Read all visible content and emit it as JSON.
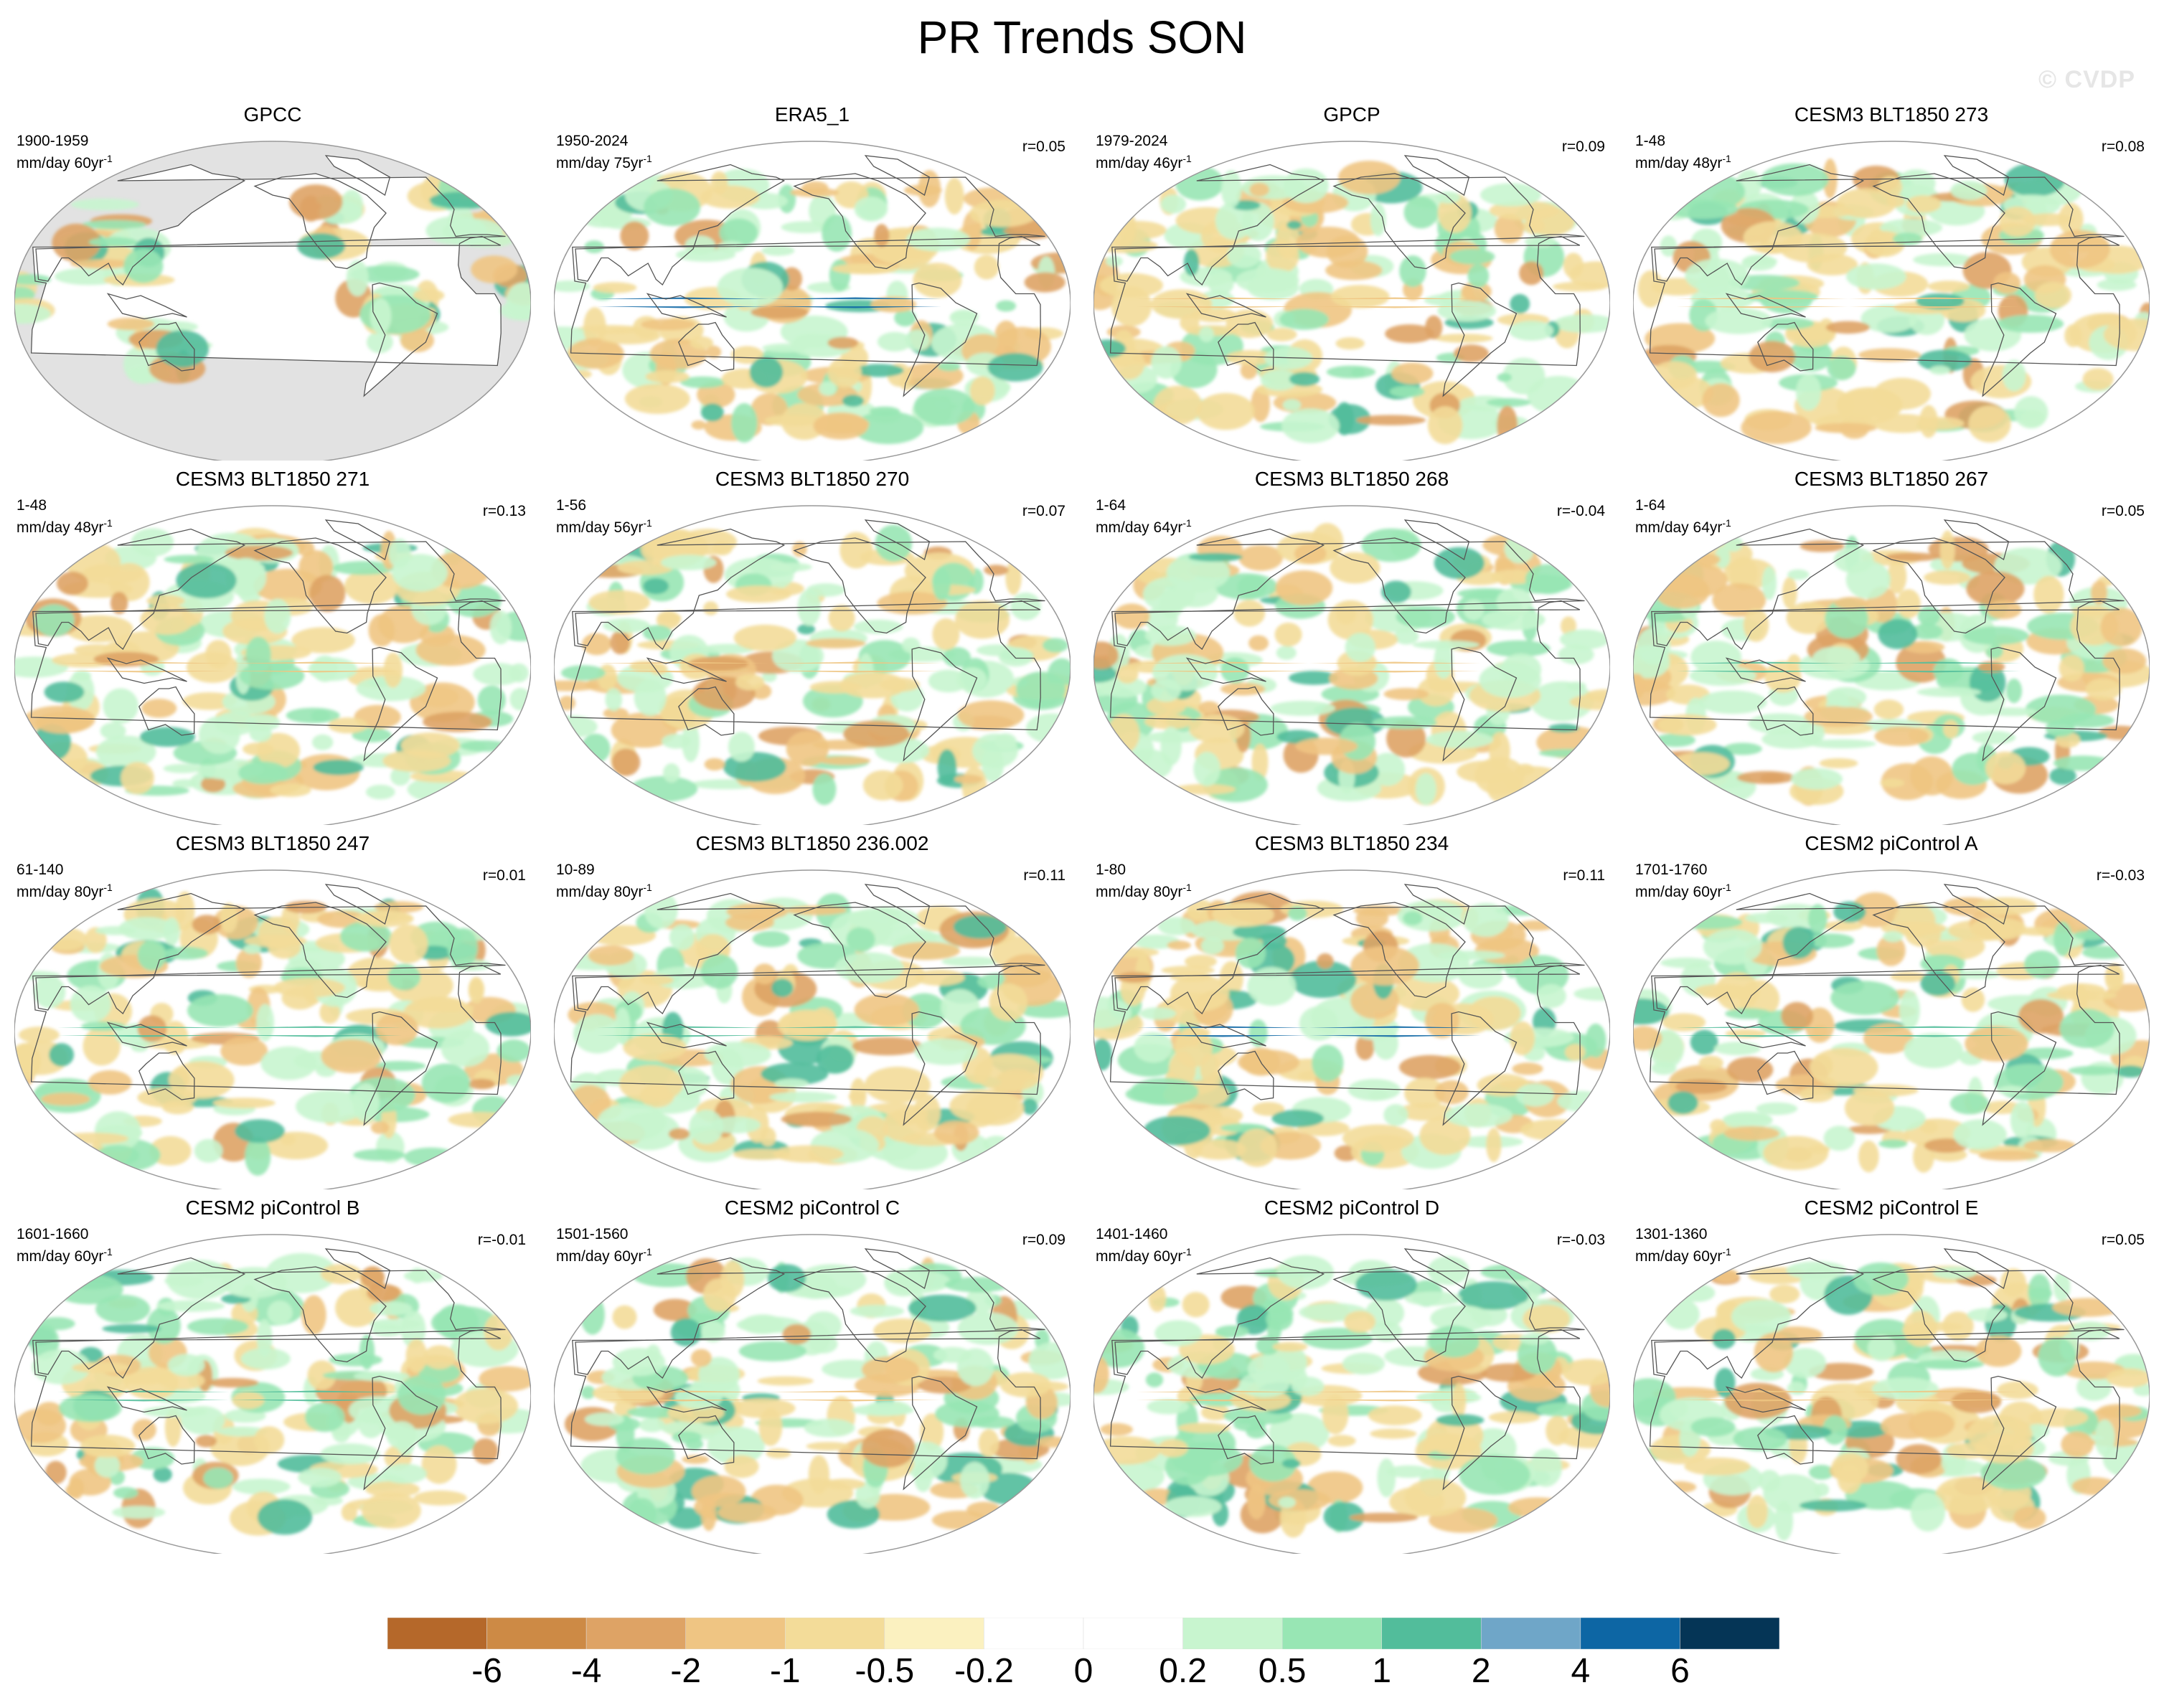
{
  "figure": {
    "title": "PR Trends SON",
    "watermark": "© CVDP"
  },
  "panels": [
    {
      "title": "GPCC",
      "years": "1900-1959",
      "units": "mm/day 60yr",
      "unit_exp": "-1",
      "corr": "",
      "variant": "obs_land",
      "seed": 3
    },
    {
      "title": "ERA5_1",
      "years": "1950-2024",
      "units": "mm/day 75yr",
      "unit_exp": "-1",
      "corr": "r=0.05",
      "variant": "strong",
      "seed": 7
    },
    {
      "title": "GPCP",
      "years": "1979-2024",
      "units": "mm/day 46yr",
      "unit_exp": "-1",
      "corr": "r=0.09",
      "variant": "wet",
      "seed": 11
    },
    {
      "title": "CESM3 BLT1850 273",
      "years": "1-48",
      "units": "mm/day 48yr",
      "unit_exp": "-1",
      "corr": "r=0.08",
      "variant": "model",
      "seed": 13
    },
    {
      "title": "CESM3 BLT1850 271",
      "years": "1-48",
      "units": "mm/day 48yr",
      "unit_exp": "-1",
      "corr": "r=0.13",
      "variant": "model",
      "seed": 17
    },
    {
      "title": "CESM3 BLT1850 270",
      "years": "1-56",
      "units": "mm/day 56yr",
      "unit_exp": "-1",
      "corr": "r=0.07",
      "variant": "model",
      "seed": 19
    },
    {
      "title": "CESM3 BLT1850 268",
      "years": "1-64",
      "units": "mm/day 64yr",
      "unit_exp": "-1",
      "corr": "r=-0.04",
      "variant": "model",
      "seed": 23
    },
    {
      "title": "CESM3 BLT1850 267",
      "years": "1-64",
      "units": "mm/day 64yr",
      "unit_exp": "-1",
      "corr": "r=0.05",
      "variant": "model",
      "seed": 29
    },
    {
      "title": "CESM3 BLT1850 247",
      "years": "61-140",
      "units": "mm/day 80yr",
      "unit_exp": "-1",
      "corr": "r=0.01",
      "variant": "model",
      "seed": 31
    },
    {
      "title": "CESM3 BLT1850 236.002",
      "years": "10-89",
      "units": "mm/day 80yr",
      "unit_exp": "-1",
      "corr": "r=0.11",
      "variant": "model",
      "seed": 37
    },
    {
      "title": "CESM3 BLT1850 234",
      "years": "1-80",
      "units": "mm/day 80yr",
      "unit_exp": "-1",
      "corr": "r=0.11",
      "variant": "strong",
      "seed": 41
    },
    {
      "title": "CESM2 piControl A",
      "years": "1701-1760",
      "units": "mm/day 60yr",
      "unit_exp": "-1",
      "corr": "r=-0.03",
      "variant": "model",
      "seed": 43
    },
    {
      "title": "CESM2 piControl B",
      "years": "1601-1660",
      "units": "mm/day 60yr",
      "unit_exp": "-1",
      "corr": "r=-0.01",
      "variant": "model",
      "seed": 47
    },
    {
      "title": "CESM2 piControl C",
      "years": "1501-1560",
      "units": "mm/day 60yr",
      "unit_exp": "-1",
      "corr": "r=0.09",
      "variant": "model",
      "seed": 53
    },
    {
      "title": "CESM2 piControl D",
      "years": "1401-1460",
      "units": "mm/day 60yr",
      "unit_exp": "-1",
      "corr": "r=-0.03",
      "variant": "model",
      "seed": 59
    },
    {
      "title": "CESM2 piControl E",
      "years": "1301-1360",
      "units": "mm/day 60yr",
      "unit_exp": "-1",
      "corr": "r=0.05",
      "variant": "model",
      "seed": 61
    }
  ],
  "colorbar": {
    "labels": [
      "-6",
      "-4",
      "-2",
      "-1",
      "-0.5",
      "-0.2",
      "0",
      "0.2",
      "0.5",
      "1",
      "2",
      "4",
      "6"
    ],
    "colors": [
      "#b5682a",
      "#cd8a45",
      "#dea365",
      "#efc583",
      "#f3dc99",
      "#fbf1c0",
      "#ffffff",
      "#ffffff",
      "#c8f5cf",
      "#98e6b4",
      "#52bd9b",
      "#6fa6c8",
      "#0d66a4",
      "#053556"
    ]
  },
  "colors": {
    "land_mask": "#e2e2e2",
    "coastline": "#555555",
    "outline": "#999999"
  }
}
